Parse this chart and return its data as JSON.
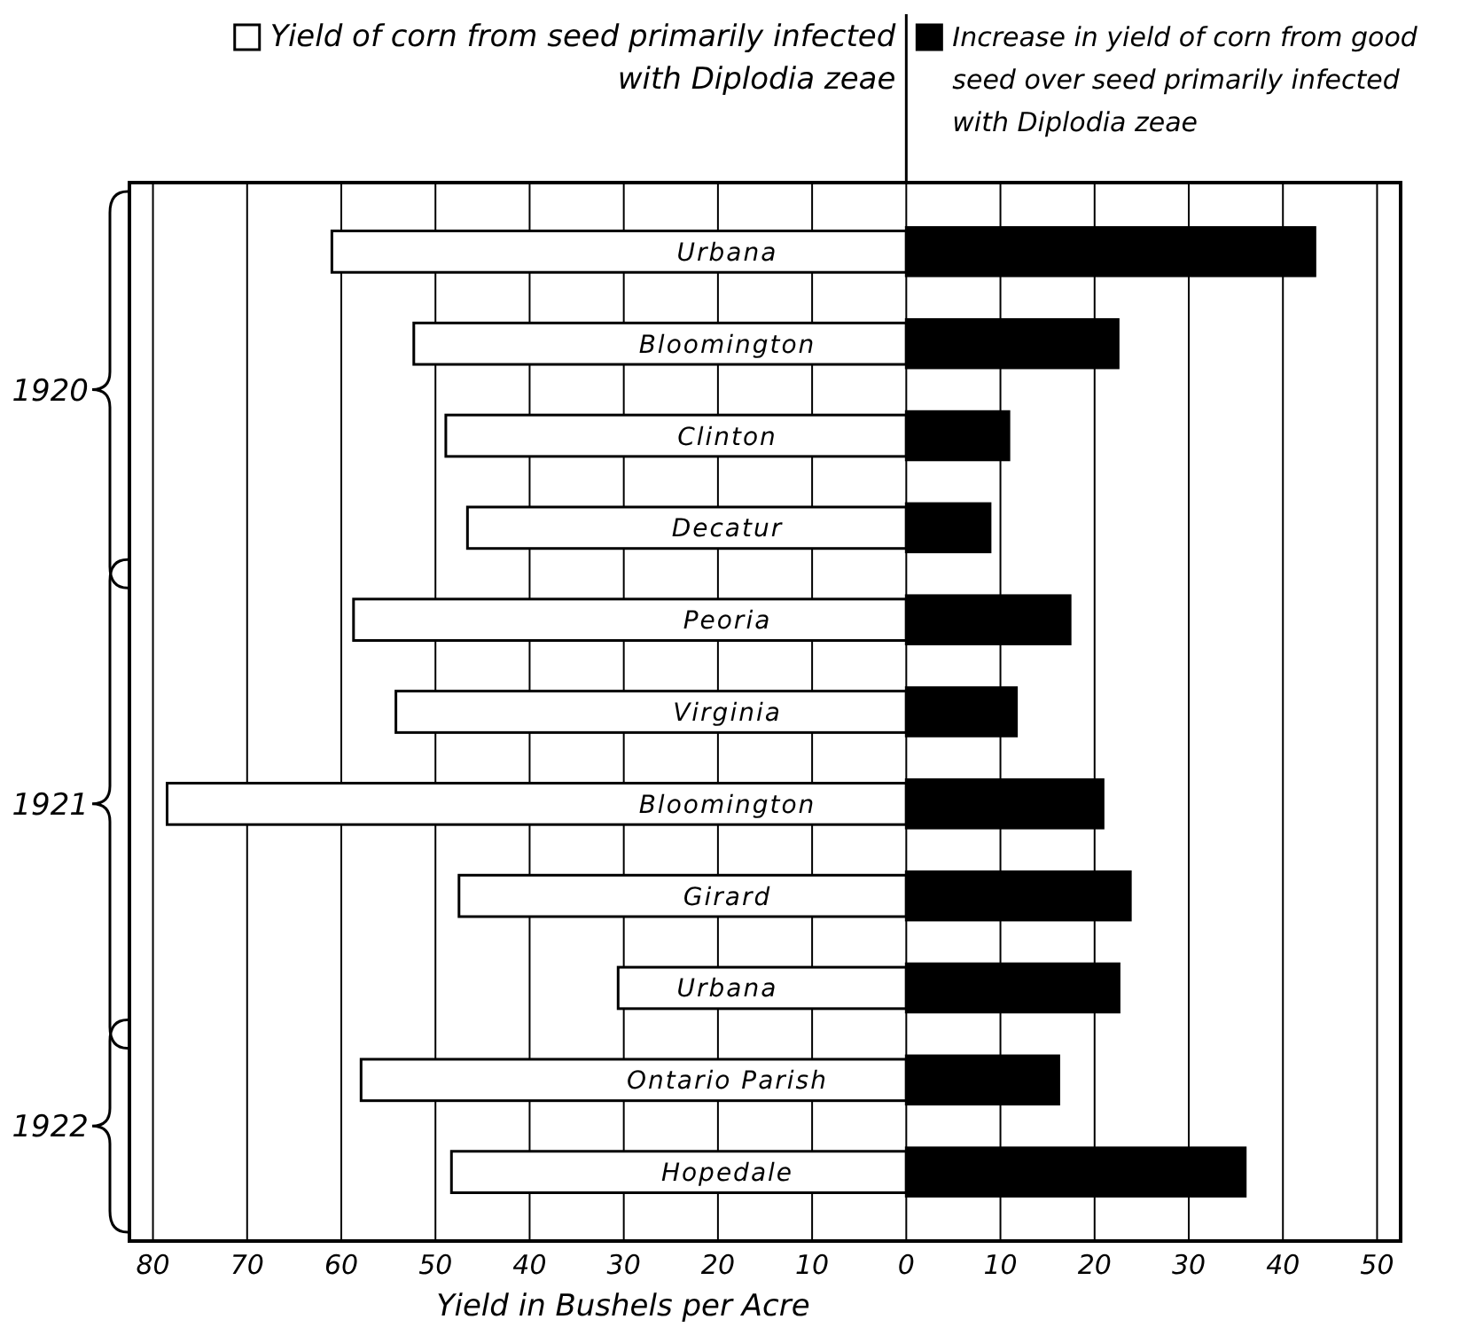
{
  "chart_data": {
    "type": "bar",
    "orientation": "horizontal",
    "xlabel": "Yield in Bushels per Acre",
    "categories": [
      "Urbana",
      "Bloomington",
      "Clinton",
      "Decatur",
      "Peoria",
      "Virginia",
      "Bloomington",
      "Girard",
      "Urbana",
      "Ontario Parish",
      "Hopedale"
    ],
    "series": [
      {
        "name": "Yield of corn from seed primarily infected with Diplodia zeae",
        "color": "#ffffff",
        "values": [
          -61,
          -52.3,
          -48.9,
          -46.6,
          -58.7,
          -54.2,
          -78.5,
          -47.5,
          -30.6,
          -57.9,
          -48.3
        ]
      },
      {
        "name": "Increase in yield of corn from good seed over seed primarily infected with Diplodia zeae",
        "color": "#000000",
        "values": [
          43.4,
          22.5,
          10.9,
          8.9,
          17.4,
          11.7,
          20.9,
          23.8,
          22.6,
          16.2,
          36
        ]
      }
    ],
    "xlim": [
      -82.5,
      52.5
    ],
    "xticks": [
      {
        "value": -80,
        "label": "80"
      },
      {
        "value": -70,
        "label": "70"
      },
      {
        "value": -60,
        "label": "60"
      },
      {
        "value": -50,
        "label": "50"
      },
      {
        "value": -40,
        "label": "40"
      },
      {
        "value": -30,
        "label": "30"
      },
      {
        "value": -20,
        "label": "20"
      },
      {
        "value": -10,
        "label": "10"
      },
      0,
      10,
      20,
      30,
      40,
      50
    ],
    "grid": "x",
    "legend": "top",
    "annotations": [
      "1920",
      "1921",
      "1922"
    ]
  }
}
